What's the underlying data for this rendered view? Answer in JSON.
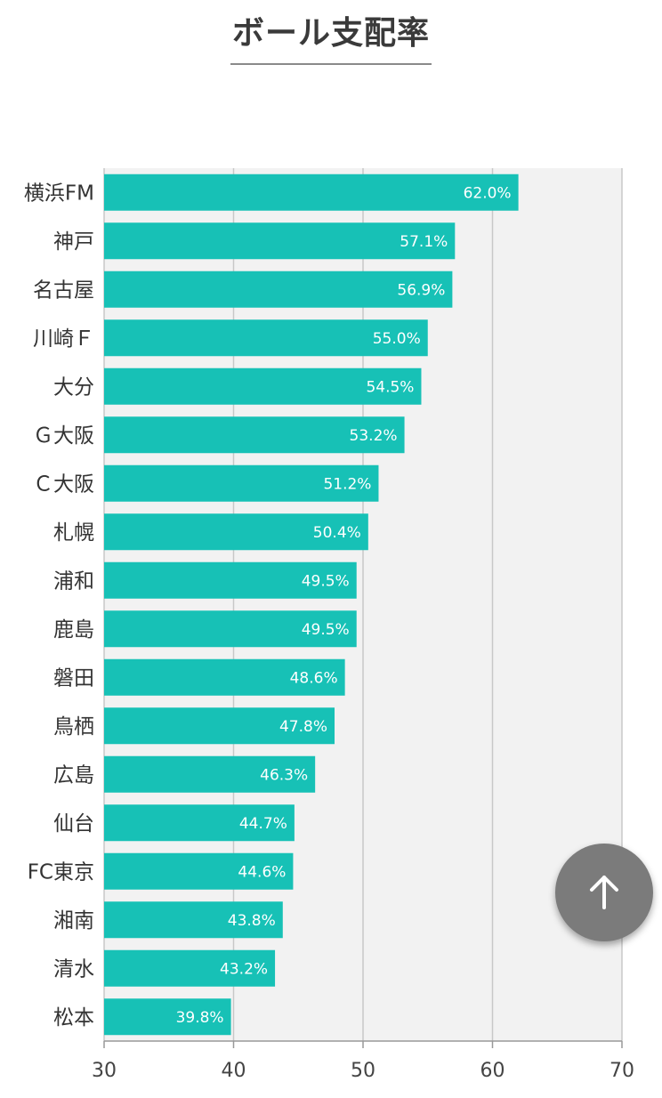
{
  "chart_data": {
    "type": "bar",
    "orientation": "horizontal",
    "title": "ボール支配率",
    "categories": [
      "横浜FM",
      "神戸",
      "名古屋",
      "川崎Ｆ",
      "大分",
      "Ｇ大阪",
      "Ｃ大阪",
      "札幌",
      "浦和",
      "鹿島",
      "磐田",
      "鳥栖",
      "広島",
      "仙台",
      "FC東京",
      "湘南",
      "清水",
      "松本"
    ],
    "values": [
      62.0,
      57.1,
      56.9,
      55.0,
      54.5,
      53.2,
      51.2,
      50.4,
      49.5,
      49.5,
      48.6,
      47.8,
      46.3,
      44.7,
      44.6,
      43.8,
      43.2,
      39.8
    ],
    "value_labels": [
      "62.0%",
      "57.1%",
      "56.9%",
      "55.0%",
      "54.5%",
      "53.2%",
      "51.2%",
      "50.4%",
      "49.5%",
      "49.5%",
      "48.6%",
      "47.8%",
      "46.3%",
      "44.7%",
      "44.6%",
      "43.8%",
      "43.2%",
      "39.8%"
    ],
    "xlim": [
      30,
      70
    ],
    "xticks": [
      "30",
      "40",
      "50",
      "60",
      "70"
    ],
    "grid": true,
    "bar_color": "#17c1b6",
    "background_color": "#f2f2f2",
    "grid_color": "#c8c8c8"
  },
  "scroll_top_button": {
    "icon": "arrow-up-icon"
  }
}
